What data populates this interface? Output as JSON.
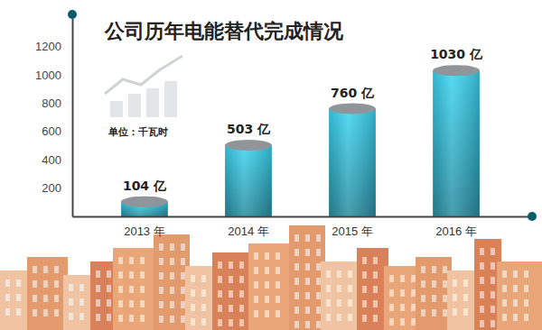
{
  "chart_data": {
    "type": "bar",
    "title": "公司历年电能替代完成情况",
    "subtitle": "单位：千瓦时",
    "categories": [
      "2013 年",
      "2014 年",
      "2015 年",
      "2016 年"
    ],
    "values": [
      104,
      503,
      760,
      1030
    ],
    "value_labels": [
      "104 亿",
      "503 亿",
      "760 亿",
      "1030 亿"
    ],
    "color": "#2a9bb0",
    "ylim": [
      0,
      1400
    ],
    "yticks": [
      200,
      400,
      600,
      800,
      1000,
      1200
    ],
    "data_labels": true,
    "grid": false
  }
}
